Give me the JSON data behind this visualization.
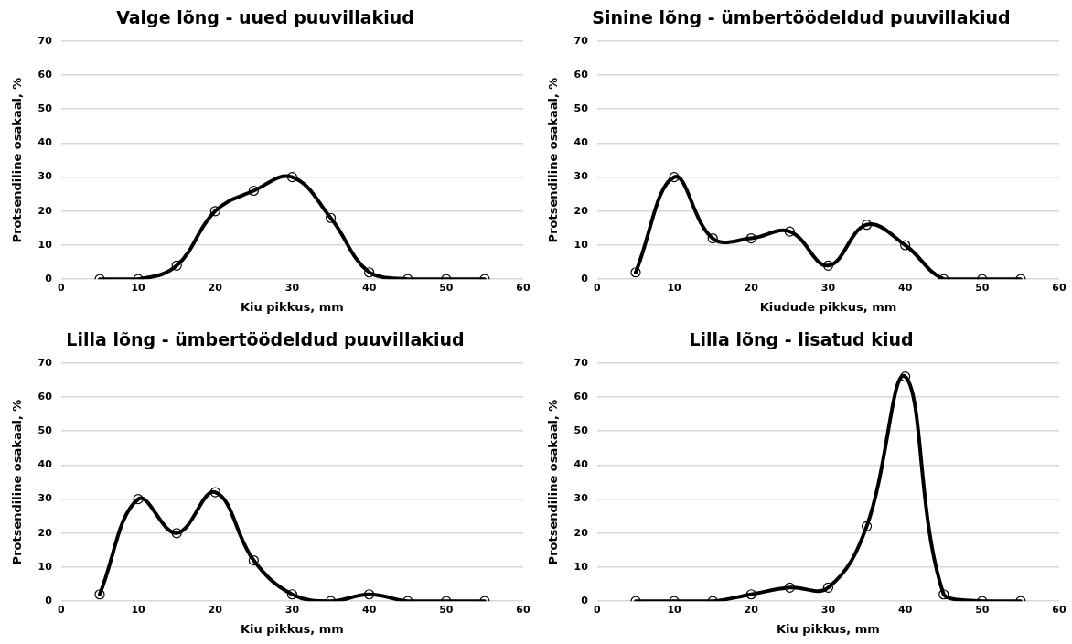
{
  "chart_data": [
    {
      "type": "line",
      "title": "Valge lõng - uued puuvillakiud",
      "xlabel": "Kiu pikkus, mm",
      "ylabel": "Protsendiline osakaal, %",
      "x": [
        5,
        10,
        15,
        20,
        25,
        30,
        35,
        40,
        45,
        50,
        55
      ],
      "series": [
        {
          "color": "#000000",
          "values": [
            0,
            0,
            4,
            20,
            26,
            30,
            18,
            2,
            0,
            0,
            0
          ]
        }
      ],
      "xlim": [
        0,
        60
      ],
      "xticks": [
        0,
        10,
        20,
        30,
        40,
        50,
        60
      ],
      "ylim": [
        0,
        70
      ],
      "yticks": [
        0,
        10,
        20,
        30,
        40,
        50,
        60,
        70
      ],
      "grid": "y",
      "legend": false,
      "marker": "circle",
      "line_style": "solid"
    },
    {
      "type": "line",
      "title": "Sinine lõng - ümbertöödeldud puuvillakiud",
      "xlabel": "Kiudude pikkus, mm",
      "ylabel": "Protsendiline osakaal, %",
      "x": [
        5,
        10,
        15,
        20,
        25,
        30,
        35,
        40,
        45,
        50,
        55
      ],
      "series": [
        {
          "color": "#000000",
          "values": [
            2,
            30,
            12,
            12,
            14,
            4,
            16,
            10,
            0,
            0,
            0
          ]
        }
      ],
      "xlim": [
        0,
        60
      ],
      "xticks": [
        0,
        10,
        20,
        30,
        40,
        50,
        60
      ],
      "ylim": [
        0,
        70
      ],
      "yticks": [
        0,
        10,
        20,
        30,
        40,
        50,
        60,
        70
      ],
      "grid": "y",
      "legend": false,
      "marker": "circle",
      "line_style": "solid"
    },
    {
      "type": "line",
      "title": "Lilla lõng - ümbertöödeldud puuvillakiud",
      "xlabel": "Kiu pikkus, mm",
      "ylabel": "Protsendiline osakaal, %",
      "x": [
        5,
        10,
        15,
        20,
        25,
        30,
        35,
        40,
        45,
        50,
        55
      ],
      "series": [
        {
          "color": "#000000",
          "values": [
            2,
            30,
            20,
            32,
            12,
            2,
            0,
            2,
            0,
            0,
            0
          ]
        }
      ],
      "xlim": [
        0,
        60
      ],
      "xticks": [
        0,
        10,
        20,
        30,
        40,
        50,
        60
      ],
      "ylim": [
        0,
        70
      ],
      "yticks": [
        0,
        10,
        20,
        30,
        40,
        50,
        60,
        70
      ],
      "grid": "y",
      "legend": false,
      "marker": "circle",
      "line_style": "solid"
    },
    {
      "type": "line",
      "title": "Lilla lõng - lisatud kiud",
      "xlabel": "Kiu pikkus, mm",
      "ylabel": "Protsendiline osakaal, %",
      "x": [
        5,
        10,
        15,
        20,
        25,
        30,
        35,
        40,
        45,
        50,
        55
      ],
      "series": [
        {
          "color": "#000000",
          "values": [
            0,
            0,
            0,
            2,
            4,
            4,
            22,
            66,
            2,
            0,
            0
          ]
        }
      ],
      "xlim": [
        0,
        60
      ],
      "xticks": [
        0,
        10,
        20,
        30,
        40,
        50,
        60
      ],
      "ylim": [
        0,
        70
      ],
      "yticks": [
        0,
        10,
        20,
        30,
        40,
        50,
        60,
        70
      ],
      "grid": "y",
      "legend": false,
      "marker": "circle",
      "line_style": "solid"
    }
  ]
}
